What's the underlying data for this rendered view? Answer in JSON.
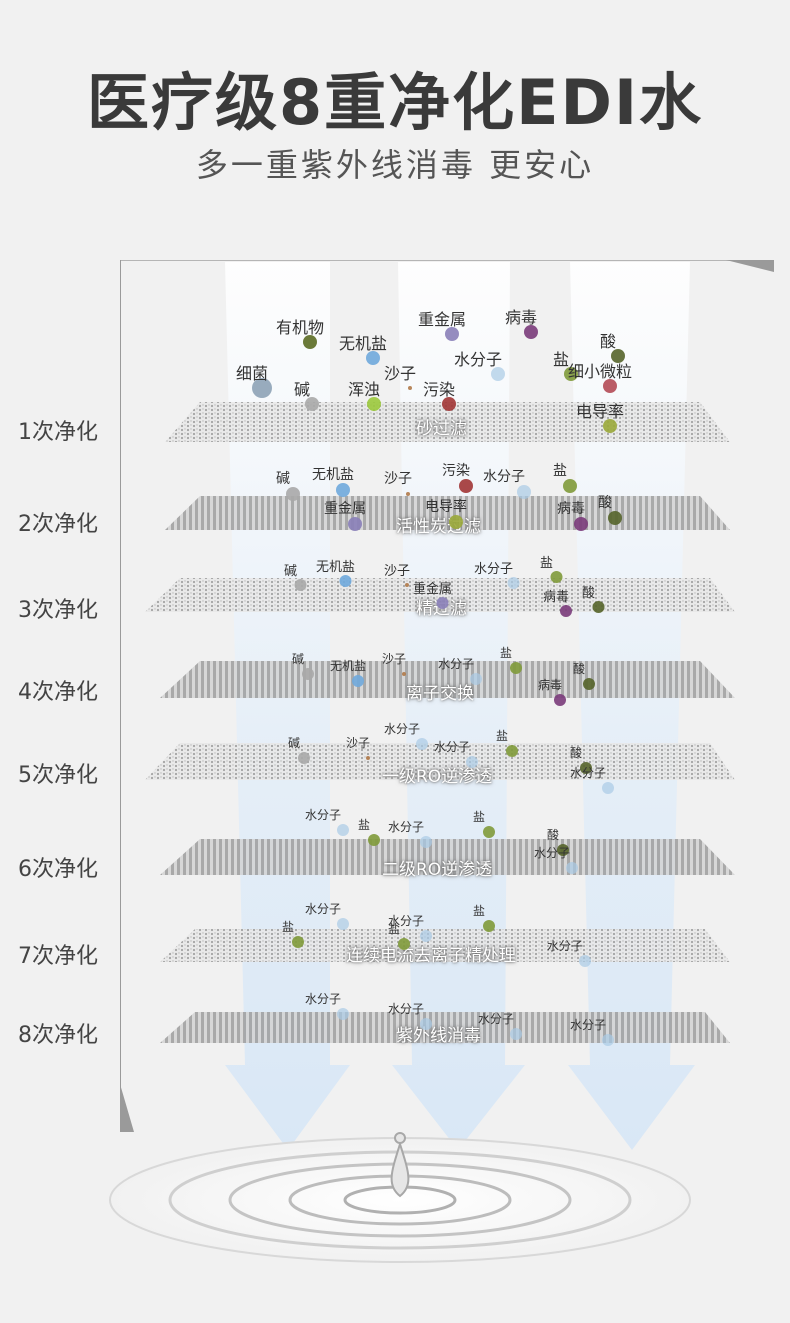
{
  "title": "医疗级8重净化EDI水",
  "subtitle": "多一重紫外线消毒 更安心",
  "stages": [
    {
      "step": "1次净化",
      "filter": "砂过滤",
      "particles": [
        "有机物",
        "无机盐",
        "重金属",
        "病毒",
        "酸",
        "细菌",
        "沙子",
        "水分子",
        "盐",
        "细小微粒",
        "碱",
        "浑浊",
        "污染",
        "电导率"
      ]
    },
    {
      "step": "2次净化",
      "filter": "活性炭过滤",
      "particles": [
        "碱",
        "无机盐",
        "沙子",
        "污染",
        "水分子",
        "盐",
        "重金属",
        "电导率",
        "病毒",
        "酸"
      ]
    },
    {
      "step": "3次净化",
      "filter": "精过滤",
      "particles": [
        "碱",
        "无机盐",
        "沙子",
        "水分子",
        "盐",
        "重金属",
        "病毒",
        "酸"
      ]
    },
    {
      "step": "4次净化",
      "filter": "离子交换",
      "particles": [
        "碱",
        "无机盐",
        "沙子",
        "水分子",
        "盐",
        "酸",
        "病毒"
      ]
    },
    {
      "step": "5次净化",
      "filter": "一级RO逆渗透",
      "particles": [
        "碱",
        "沙子",
        "水分子",
        "水分子",
        "盐",
        "酸",
        "水分子"
      ]
    },
    {
      "step": "6次净化",
      "filter": "二级RO逆渗透",
      "particles": [
        "水分子",
        "盐",
        "水分子",
        "盐",
        "酸",
        "水分子"
      ]
    },
    {
      "step": "7次净化",
      "filter": "连续电流去离子精处理",
      "particles": [
        "水分子",
        "盐",
        "水分子",
        "盐",
        "盐",
        "水分子"
      ]
    },
    {
      "step": "8次净化",
      "filter": "紫外线消毒",
      "particles": [
        "水分子",
        "水分子",
        "水分子",
        "水分子"
      ]
    }
  ],
  "colors": {
    "title": "#3a3a3a",
    "beam": "#dbe9f7",
    "virus": "#7a3b7a",
    "salt": "#7f9a3a",
    "water": "#a9cbe6"
  }
}
